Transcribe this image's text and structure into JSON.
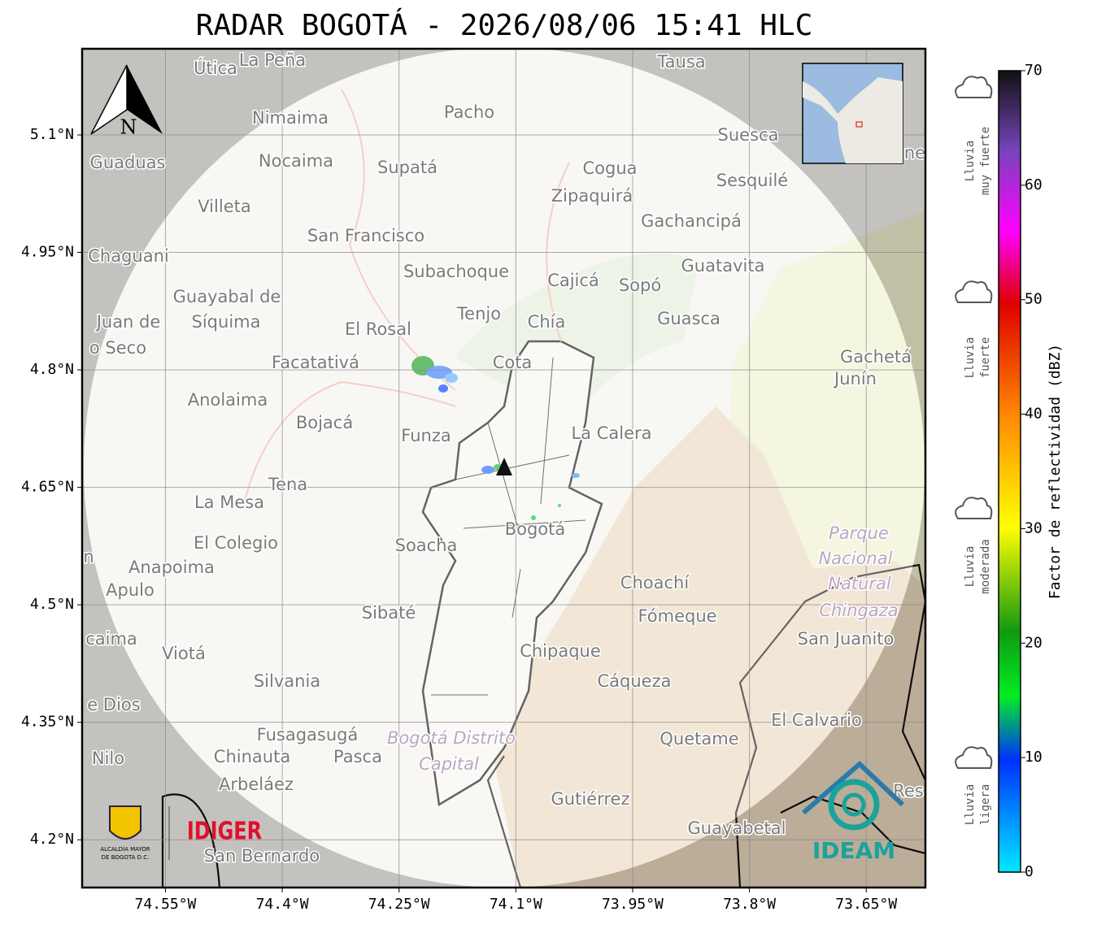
{
  "title": "RADAR BOGOTÁ - 2026/08/06 15:41 HLC",
  "map": {
    "xlim": [
      -74.657,
      -73.574
    ],
    "ylim": [
      4.139,
      5.21
    ],
    "xticks": [
      {
        "value": -74.55,
        "label": "74.55°W"
      },
      {
        "value": -74.4,
        "label": "74.4°W"
      },
      {
        "value": -74.25,
        "label": "74.25°W"
      },
      {
        "value": -74.1,
        "label": "74.1°W"
      },
      {
        "value": -73.95,
        "label": "73.95°W"
      },
      {
        "value": -73.8,
        "label": "73.8°W"
      },
      {
        "value": -73.65,
        "label": "73.65°W"
      }
    ],
    "yticks": [
      {
        "value": 5.1,
        "label": "5.1°N"
      },
      {
        "value": 4.95,
        "label": "4.95°N"
      },
      {
        "value": 4.8,
        "label": "4.8°N"
      },
      {
        "value": 4.65,
        "label": "4.65°N"
      },
      {
        "value": 4.5,
        "label": "4.5°N"
      },
      {
        "value": 4.35,
        "label": "4.35°N"
      },
      {
        "value": 4.2,
        "label": "4.2°N"
      }
    ],
    "north": "N",
    "places": [
      "Útica",
      "La Peña",
      "Tausa",
      "Pacho",
      "Nimaima",
      "Suesca",
      "Guaduas",
      "Nocaima",
      "Supatá",
      "Cogua",
      "Sesquilé",
      "Zipaquirá",
      "Villeta",
      "Gachancipá",
      "San Francisco",
      "Chaguani",
      "Guatavita",
      "Subachoque",
      "Cajicá",
      "Sopó",
      "Guayabal de",
      "Síquima",
      "Tenjo",
      "Chía",
      "Guasca",
      "Juan de",
      "El Rosal",
      "o Seco",
      "Gachetá",
      "Facatativá",
      "Cota",
      "Junín",
      "Anolaima",
      "Bojacá",
      "Funza",
      "La Calera",
      "Tena",
      "La Mesa",
      "Bogotá",
      "Parque",
      "El Colegio",
      "Soacha",
      "Nacional",
      "Anapoima",
      "Apulo",
      "Natural",
      "Choachí",
      "Chingaza",
      "Sibaté",
      "Fómeque",
      "San Juanito",
      "caima",
      "Viotá",
      "Chipaque",
      "Silvania",
      "Cáqueza",
      "e Dios",
      "El Calvario",
      "Fusagasugá",
      "Bogotá Distrito",
      "Quetame",
      "Nilo",
      "Chinauta",
      "Pasca",
      "Capital",
      "Arbeláez",
      "Gutiérrez",
      "Res",
      "Guayabetal",
      "San Bernardo",
      "ne",
      "n"
    ]
  },
  "colorbar": {
    "label": "Factor de reflectividad (dBZ)",
    "lim": [
      0,
      70
    ],
    "ticks": [
      0,
      10,
      20,
      30,
      40,
      50,
      60,
      70
    ]
  },
  "legend": [
    {
      "line1": "Lluvia",
      "line2": "muy fuerte"
    },
    {
      "line1": "Lluvia",
      "line2": "fuerte"
    },
    {
      "line1": "Lluvia",
      "line2": "moderada"
    },
    {
      "line1": "Lluvia",
      "line2": "ligera"
    }
  ],
  "logos": {
    "alcaldia1": "ALCALDÍA MAYOR",
    "alcaldia2": "DE BOGOTÁ D.C.",
    "idiger": "IDIGER",
    "ideam": "IDEAM"
  }
}
